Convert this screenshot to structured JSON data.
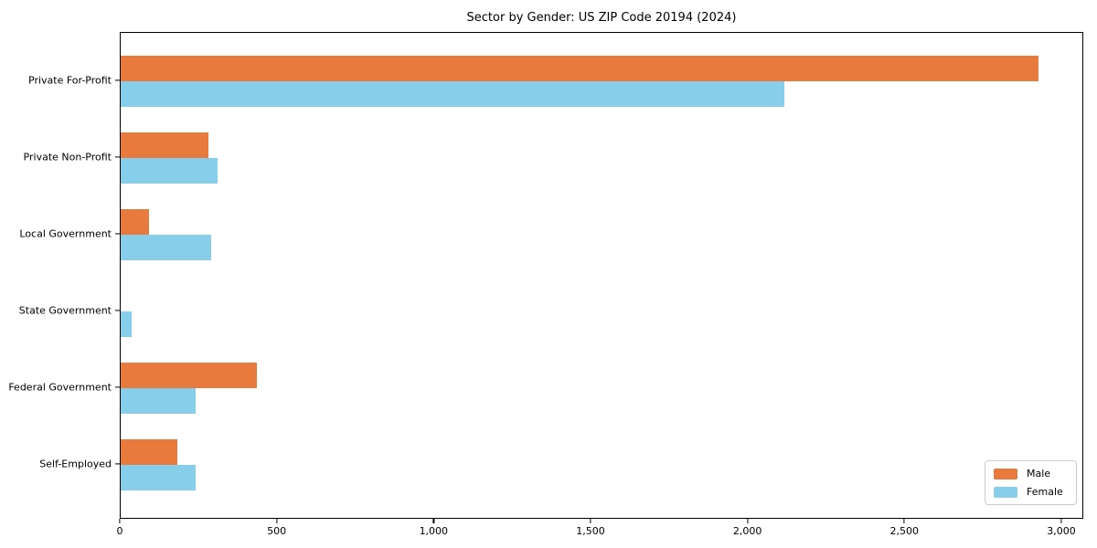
{
  "title": "Sector by Gender: US ZIP Code 20194 (2024)",
  "colors": {
    "male": "#e87a3d",
    "female": "#87ceeb",
    "axis": "#000000",
    "legend_border": "#cccccc",
    "background": "#ffffff"
  },
  "chart_data": {
    "type": "bar",
    "orientation": "horizontal",
    "title": "Sector by Gender: US ZIP Code 20194 (2024)",
    "categories": [
      "Private For-Profit",
      "Private Non-Profit",
      "Local Government",
      "State Government",
      "Federal Government",
      "Self-Employed"
    ],
    "series": [
      {
        "name": "Male",
        "color": "#e87a3d",
        "values": [
          2930,
          280,
          90,
          0,
          435,
          180
        ]
      },
      {
        "name": "Female",
        "color": "#87ceeb",
        "values": [
          2120,
          310,
          290,
          35,
          240,
          240
        ]
      }
    ],
    "xlabel": "",
    "ylabel": "",
    "xlim": [
      0,
      3070
    ],
    "x_ticks": {
      "values": [
        0,
        500,
        1000,
        1500,
        2000,
        2500,
        3000
      ],
      "labels": [
        "0",
        "500",
        "1,000",
        "1,500",
        "2,000",
        "2,500",
        "3,000"
      ]
    },
    "grid": false,
    "legend_position": "lower right"
  },
  "legend": {
    "items": [
      {
        "label": "Male",
        "color": "#e87a3d"
      },
      {
        "label": "Female",
        "color": "#87ceeb"
      }
    ]
  }
}
